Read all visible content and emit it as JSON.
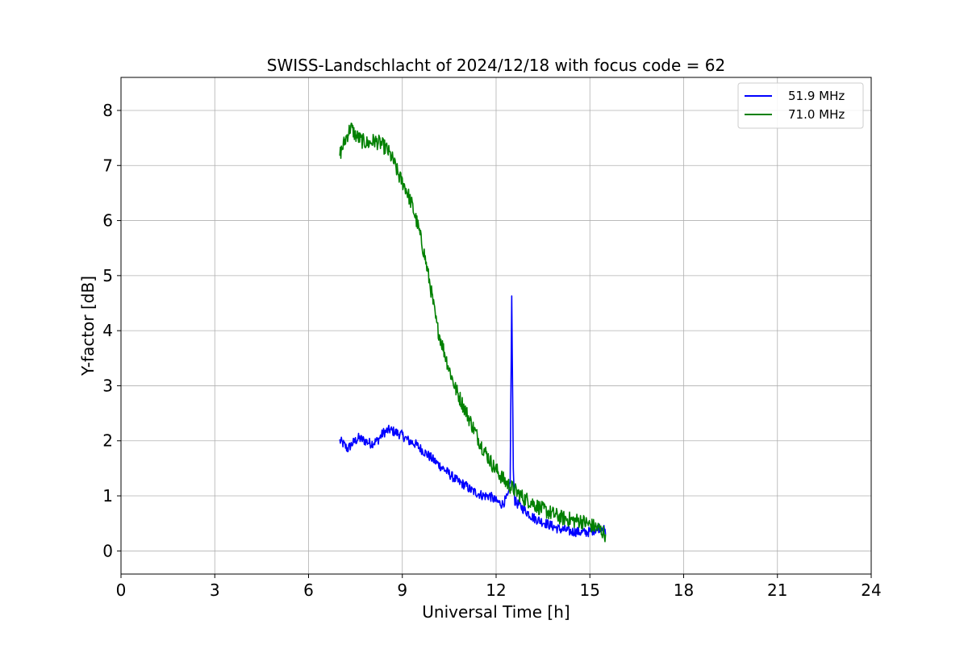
{
  "chart_data": {
    "type": "line",
    "title": "SWISS-Landschlacht of 2024/12/18 with focus code = 62",
    "xlabel": "Universal Time [h]",
    "ylabel": "Y-factor [dB]",
    "xlim": [
      0,
      24
    ],
    "ylim": [
      -0.42,
      8.6
    ],
    "xticks": [
      0,
      3,
      6,
      9,
      12,
      15,
      18,
      21,
      24
    ],
    "yticks": [
      0,
      1,
      2,
      3,
      4,
      5,
      6,
      7,
      8
    ],
    "grid": true,
    "legend_position": "top-right",
    "series": [
      {
        "name": "51.9 MHz",
        "color": "#0000ff",
        "x": [
          7.0,
          7.1,
          7.25,
          7.4,
          7.6,
          7.8,
          8.0,
          8.2,
          8.4,
          8.6,
          8.8,
          9.0,
          9.2,
          9.4,
          9.6,
          9.8,
          10.0,
          10.2,
          10.4,
          10.6,
          10.8,
          11.0,
          11.2,
          11.4,
          11.6,
          11.8,
          12.0,
          12.2,
          12.4,
          12.45,
          12.5,
          12.55,
          12.6,
          12.8,
          13.0,
          13.2,
          13.4,
          13.6,
          13.8,
          14.0,
          14.2,
          14.4,
          14.6,
          14.8,
          15.0,
          15.2,
          15.4,
          15.5
        ],
        "y": [
          2.0,
          1.95,
          1.85,
          1.95,
          2.05,
          2.0,
          1.95,
          2.0,
          2.15,
          2.2,
          2.15,
          2.1,
          2.0,
          1.95,
          1.85,
          1.75,
          1.65,
          1.55,
          1.45,
          1.35,
          1.25,
          1.2,
          1.1,
          1.05,
          1.0,
          1.0,
          0.9,
          0.85,
          1.0,
          1.3,
          4.6,
          1.5,
          0.9,
          0.8,
          0.7,
          0.6,
          0.55,
          0.5,
          0.45,
          0.4,
          0.38,
          0.35,
          0.35,
          0.33,
          0.35,
          0.4,
          0.45,
          0.3
        ],
        "noise": 0.09
      },
      {
        "name": "71.0 MHz",
        "color": "#008000",
        "x": [
          7.0,
          7.1,
          7.2,
          7.35,
          7.5,
          7.7,
          7.9,
          8.1,
          8.3,
          8.5,
          8.7,
          8.9,
          9.1,
          9.3,
          9.5,
          9.7,
          9.9,
          10.1,
          10.3,
          10.5,
          10.7,
          10.9,
          11.1,
          11.3,
          11.5,
          11.7,
          11.9,
          12.1,
          12.3,
          12.5,
          12.7,
          12.9,
          13.1,
          13.3,
          13.5,
          13.7,
          13.9,
          14.1,
          14.3,
          14.5,
          14.7,
          14.9,
          15.1,
          15.3,
          15.5
        ],
        "y": [
          7.2,
          7.35,
          7.5,
          7.7,
          7.55,
          7.45,
          7.4,
          7.45,
          7.4,
          7.3,
          7.1,
          6.8,
          6.6,
          6.3,
          5.9,
          5.4,
          4.8,
          4.1,
          3.7,
          3.3,
          2.95,
          2.7,
          2.45,
          2.2,
          1.95,
          1.75,
          1.55,
          1.4,
          1.25,
          1.15,
          1.05,
          0.95,
          0.9,
          0.82,
          0.75,
          0.7,
          0.65,
          0.6,
          0.58,
          0.55,
          0.55,
          0.5,
          0.45,
          0.4,
          0.3
        ],
        "noise": 0.14
      }
    ]
  }
}
